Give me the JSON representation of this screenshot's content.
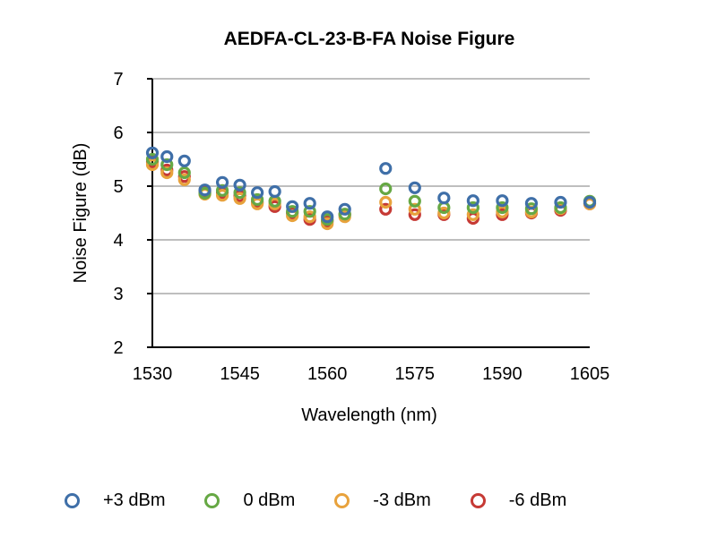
{
  "chart_data": {
    "type": "scatter",
    "title": "AEDFA-CL-23-B-FA Noise Figure",
    "xlabel": "Wavelength (nm)",
    "ylabel": "Noise Figure (dB)",
    "xlim": [
      1530,
      1605
    ],
    "ylim": [
      2,
      7
    ],
    "xticks": [
      "1530",
      "1545",
      "1560",
      "1575",
      "1590",
      "1605"
    ],
    "yticks": [
      "2",
      "3",
      "4",
      "5",
      "6",
      "7"
    ],
    "grid": "horizontal",
    "legend_position": "bottom",
    "x": [
      1530,
      1532.5,
      1535.5,
      1539,
      1542,
      1545,
      1548,
      1551,
      1554,
      1557,
      1560,
      1563,
      1570,
      1575,
      1580,
      1585,
      1590,
      1595,
      1600,
      1605
    ],
    "series": [
      {
        "name": "+3 dBm",
        "color": "#3f6fa8",
        "values": [
          5.62,
          5.55,
          5.47,
          4.93,
          5.07,
          5.02,
          4.88,
          4.9,
          4.62,
          4.68,
          4.43,
          4.57,
          5.33,
          4.97,
          4.78,
          4.73,
          4.73,
          4.68,
          4.7,
          4.7
        ]
      },
      {
        "name": "0 dBm",
        "color": "#66a844",
        "values": [
          5.5,
          5.4,
          5.25,
          4.87,
          4.92,
          4.88,
          4.75,
          4.72,
          4.53,
          4.53,
          4.38,
          4.48,
          4.95,
          4.72,
          4.6,
          4.6,
          4.6,
          4.58,
          4.6,
          4.72
        ]
      },
      {
        "name": "-3 dBm",
        "color": "#e8a23c",
        "values": [
          5.4,
          5.25,
          5.12,
          4.85,
          4.83,
          4.77,
          4.67,
          4.67,
          4.45,
          4.43,
          4.3,
          4.43,
          4.7,
          4.57,
          4.5,
          4.47,
          4.52,
          4.52,
          4.58,
          4.67
        ]
      },
      {
        "name": "-6 dBm",
        "color": "#c63a35",
        "values": [
          5.45,
          5.3,
          5.18,
          4.9,
          4.88,
          4.82,
          4.7,
          4.62,
          4.5,
          4.38,
          4.35,
          4.47,
          4.57,
          4.47,
          4.47,
          4.4,
          4.47,
          4.5,
          4.55,
          4.67
        ]
      }
    ]
  }
}
